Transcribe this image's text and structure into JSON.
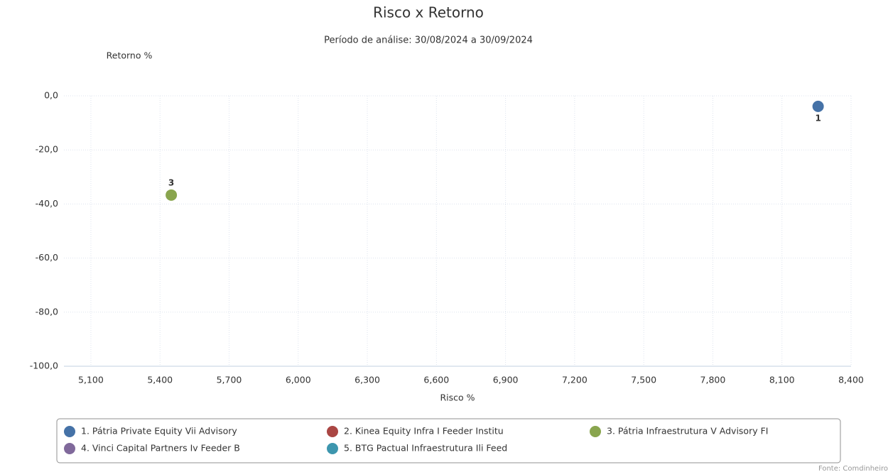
{
  "chart_data": {
    "type": "scatter",
    "title": "Risco x Retorno",
    "subtitle": "Período de análise: 30/08/2024 a 30/09/2024",
    "y_label": "Retorno %",
    "x_label": "Risco %",
    "credit": "Fonte: Comdinheiro",
    "xlim": [
      4.983,
      8.4
    ],
    "ylim": [
      -100,
      0
    ],
    "xticks": [
      {
        "value": 5.1,
        "label": "5,100"
      },
      {
        "value": 5.4,
        "label": "5,400"
      },
      {
        "value": 5.7,
        "label": "5,700"
      },
      {
        "value": 6.0,
        "label": "6,000"
      },
      {
        "value": 6.3,
        "label": "6,300"
      },
      {
        "value": 6.6,
        "label": "6,600"
      },
      {
        "value": 6.9,
        "label": "6,900"
      },
      {
        "value": 7.2,
        "label": "7,200"
      },
      {
        "value": 7.5,
        "label": "7,500"
      },
      {
        "value": 7.8,
        "label": "7,800"
      },
      {
        "value": 8.1,
        "label": "8,100"
      },
      {
        "value": 8.4,
        "label": "8,400"
      }
    ],
    "yticks": [
      {
        "value": 0,
        "label": "0,0"
      },
      {
        "value": -20,
        "label": "-20,0"
      },
      {
        "value": -40,
        "label": "-40,0"
      },
      {
        "value": -60,
        "label": "-60,0"
      },
      {
        "value": -80,
        "label": "-80,0"
      },
      {
        "value": -100,
        "label": "-100,0"
      }
    ],
    "grid": true,
    "series": [
      {
        "name": "1. Pátria Private Equity Vii Advisory",
        "color": "#4572a7",
        "x": [
          8.257
        ],
        "y": [
          -3.9
        ],
        "labels": [
          "1"
        ]
      },
      {
        "name": "2. Kinea Equity Infra I Feeder Institu",
        "color": "#aa4643",
        "x": [],
        "y": [],
        "labels": []
      },
      {
        "name": "3. Pátria Infraestrutura V Advisory FI",
        "color": "#89a54e",
        "x": [
          5.449
        ],
        "y": [
          -36.7
        ],
        "labels": [
          "3"
        ]
      },
      {
        "name": "4. Vinci Capital Partners Iv Feeder B",
        "color": "#80699b",
        "x": [],
        "y": [],
        "labels": []
      },
      {
        "name": "5. BTG Pactual Infraestrutura Ili Feed",
        "color": "#3d96ae",
        "x": [],
        "y": [],
        "labels": []
      }
    ]
  }
}
